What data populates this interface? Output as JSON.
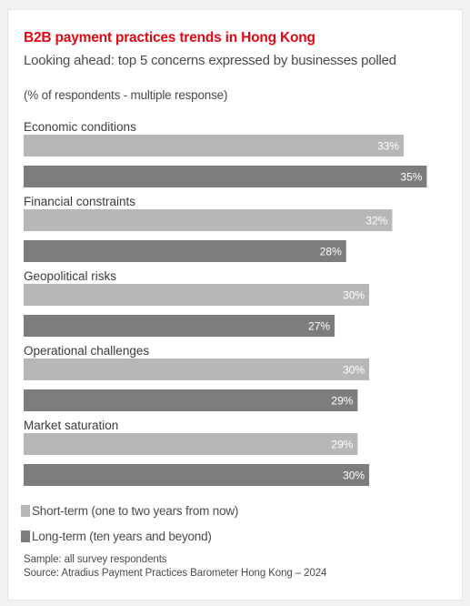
{
  "chart_data": {
    "type": "bar",
    "orientation": "horizontal",
    "title": "B2B payment practices trends in Hong Kong",
    "subtitle": "Looking ahead: top 5 concerns expressed by businesses polled",
    "unit_note": "(% of respondents - multiple response)",
    "categories": [
      "Economic conditions",
      "Financial constraints",
      "Geopolitical risks",
      "Operational challenges",
      "Market saturation"
    ],
    "series": [
      {
        "name": "Short-term (one to two years from now)",
        "color": "#b7b7b7",
        "values": [
          33,
          32,
          30,
          30,
          29
        ],
        "labels": [
          "33%",
          "32%",
          "30%",
          "30%",
          "29%"
        ]
      },
      {
        "name": "Long-term (ten years and beyond)",
        "color": "#7d7d7d",
        "values": [
          35,
          28,
          27,
          29,
          30
        ],
        "labels": [
          "35%",
          "28%",
          "27%",
          "29%",
          "30%"
        ]
      }
    ],
    "legend_position": "bottom-left",
    "grid": false
  },
  "notes": {
    "sample": "Sample: all survey respondents",
    "source": "Source: Atradius Payment Practices Barometer Hong Kong – 2024"
  }
}
